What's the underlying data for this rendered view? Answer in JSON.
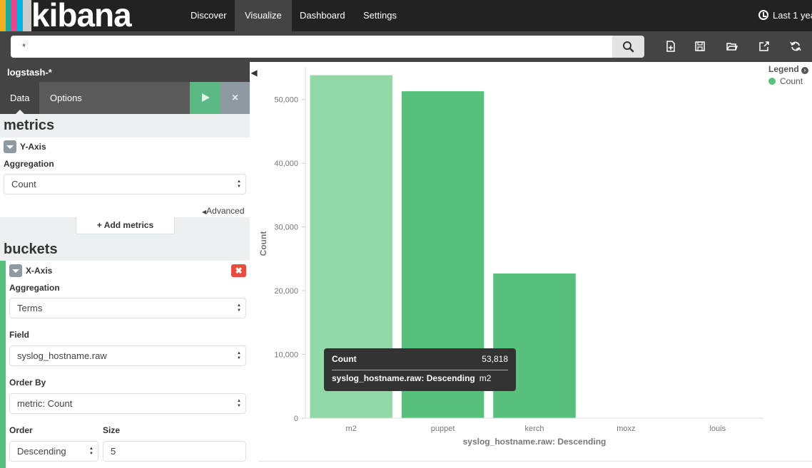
{
  "app": {
    "logo_text": "kibana",
    "brand_colors": [
      "#f0ad1f",
      "#1baa9e",
      "#e8488b",
      "#00b4e3",
      "#cccccc"
    ]
  },
  "nav": {
    "tabs": [
      {
        "label": "Discover",
        "active": false
      },
      {
        "label": "Visualize",
        "active": true
      },
      {
        "label": "Dashboard",
        "active": false
      },
      {
        "label": "Settings",
        "active": false
      }
    ]
  },
  "timepicker": {
    "label": "Last 1 yea",
    "icon": "clock-icon"
  },
  "search": {
    "query": "*",
    "icon": "search-icon"
  },
  "toolbar": {
    "icons": [
      "new-visualization-icon",
      "save-icon",
      "open-icon",
      "share-icon",
      "refresh-icon"
    ]
  },
  "sidebar": {
    "index_pattern": "logstash-*",
    "tabs": [
      {
        "label": "Data",
        "active": true
      },
      {
        "label": "Options",
        "active": false
      }
    ],
    "metrics": {
      "section_title": "metrics",
      "y_axis": {
        "title": "Y-Axis",
        "aggregation_label": "Aggregation",
        "aggregation_value": "Count"
      },
      "advanced_label": "Advanced",
      "add_metrics_label": "+ Add metrics"
    },
    "buckets": {
      "section_title": "buckets",
      "x_axis": {
        "title": "X-Axis",
        "aggregation_label": "Aggregation",
        "aggregation_value": "Terms",
        "field_label": "Field",
        "field_value": "syslog_hostname.raw",
        "order_by_label": "Order By",
        "order_by_value": "metric: Count",
        "order_label": "Order",
        "order_value": "Descending",
        "size_label": "Size",
        "size_value": "5"
      }
    }
  },
  "legend": {
    "title": "Legend",
    "items": [
      {
        "label": "Count",
        "color": "#57c17b"
      }
    ]
  },
  "tooltip": {
    "metric_label": "Count",
    "metric_value": "53,818",
    "term_label": "syslog_hostname.raw: Descending",
    "term_value": "m2"
  },
  "chart_data": {
    "type": "bar",
    "categories": [
      "m2",
      "puppet",
      "kerch",
      "moxz",
      "louis"
    ],
    "series": [
      {
        "name": "Count",
        "values": [
          53818,
          51300,
          22700,
          0,
          0
        ]
      }
    ],
    "highlighted_index": 0,
    "ylabel": "Count",
    "xlabel": "syslog_hostname.raw: Descending",
    "y_ticks": [
      "0",
      "10,000",
      "20,000",
      "30,000",
      "40,000",
      "50,000"
    ],
    "ylim": [
      0,
      55000
    ],
    "grid": false,
    "legend_position": "top-right",
    "colors": {
      "bar": "#57c17b",
      "bar_highlight": "#93d8a7"
    }
  }
}
